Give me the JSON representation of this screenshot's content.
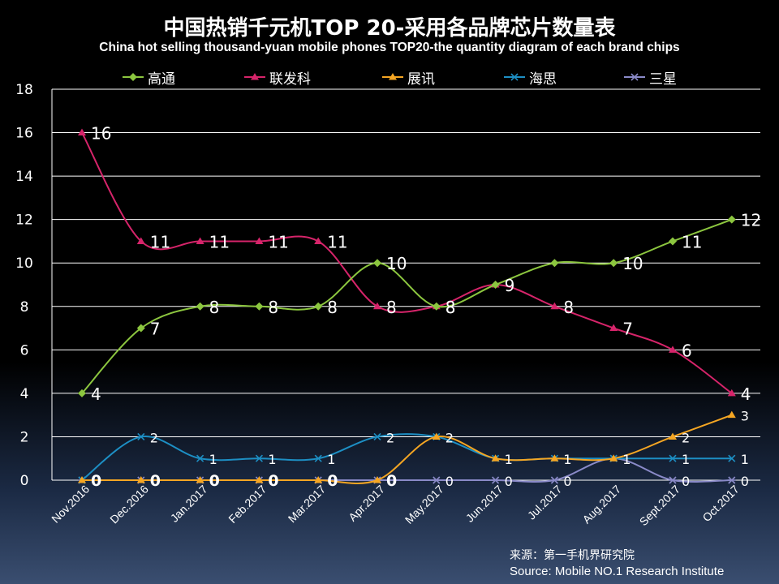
{
  "title": "中国热销千元机TOP 20-采用各品牌芯片数量表",
  "subtitle": "China hot selling thousand-yuan mobile phones TOP20-the quantity diagram of each brand chips",
  "source": {
    "cn": "来源：第一手机界研究院",
    "en": "Source: Mobile NO.1 Research Institute"
  },
  "chart_data": {
    "type": "line",
    "title": "中国热销千元机TOP 20-采用各品牌芯片数量表",
    "subtitle": "China hot selling thousand-yuan mobile phones TOP20-the quantity diagram of each brand chips",
    "xlabel": "",
    "ylabel": "",
    "ylim": [
      0,
      18
    ],
    "yticks": [
      0,
      2,
      4,
      6,
      8,
      10,
      12,
      14,
      16,
      18
    ],
    "grid": true,
    "legend_position": "top",
    "categories": [
      "Nov.2016",
      "Dec.2016",
      "Jan.2017",
      "Feb.2017",
      "Mar.2017",
      "Apr.2017",
      "May.2017",
      "Jun.2017",
      "Jul.2017",
      "Aug.2017",
      "Sept.2017",
      "Oct.2017"
    ],
    "series": [
      {
        "name": "高通",
        "color": "#8cc63f",
        "marker": "diamond",
        "values": [
          4,
          7,
          8,
          8,
          8,
          10,
          8,
          9,
          10,
          10,
          11,
          12
        ],
        "labels": [
          "4",
          "7",
          "8",
          "8",
          "8",
          "10",
          "8",
          "",
          "",
          "10",
          "11",
          "12"
        ]
      },
      {
        "name": "联发科",
        "color": "#d6246a",
        "marker": "triangle",
        "values": [
          16,
          11,
          11,
          11,
          11,
          8,
          8,
          9,
          8,
          7,
          6,
          4
        ],
        "labels": [
          "16",
          "11",
          "11",
          "11",
          "11",
          "8",
          "8",
          "9",
          "8",
          "7",
          "6",
          "4"
        ]
      },
      {
        "name": "展讯",
        "color": "#f5a623",
        "marker": "triangle",
        "values": [
          0,
          0,
          0,
          0,
          0,
          0,
          2,
          1,
          1,
          1,
          2,
          3
        ],
        "labels": [
          "0",
          "0",
          "0",
          "0",
          "0",
          "0",
          "2",
          "",
          "",
          "",
          "2",
          "3"
        ]
      },
      {
        "name": "海思",
        "color": "#1d8fc4",
        "marker": "x",
        "values": [
          0,
          2,
          1,
          1,
          1,
          2,
          2,
          1,
          1,
          1,
          1,
          1
        ],
        "labels": [
          "",
          "2",
          "1",
          "1",
          "1",
          "2",
          "",
          "1",
          "1",
          "1",
          "1",
          "1"
        ]
      },
      {
        "name": "三星",
        "color": "#8a8ac8",
        "marker": "asterisk",
        "values": [
          0,
          0,
          0,
          0,
          0,
          0,
          0,
          0,
          0,
          1,
          0,
          0
        ],
        "labels": [
          "",
          "",
          "",
          "",
          "",
          "",
          "0",
          "0",
          "0",
          "",
          "0",
          "0"
        ]
      }
    ]
  }
}
